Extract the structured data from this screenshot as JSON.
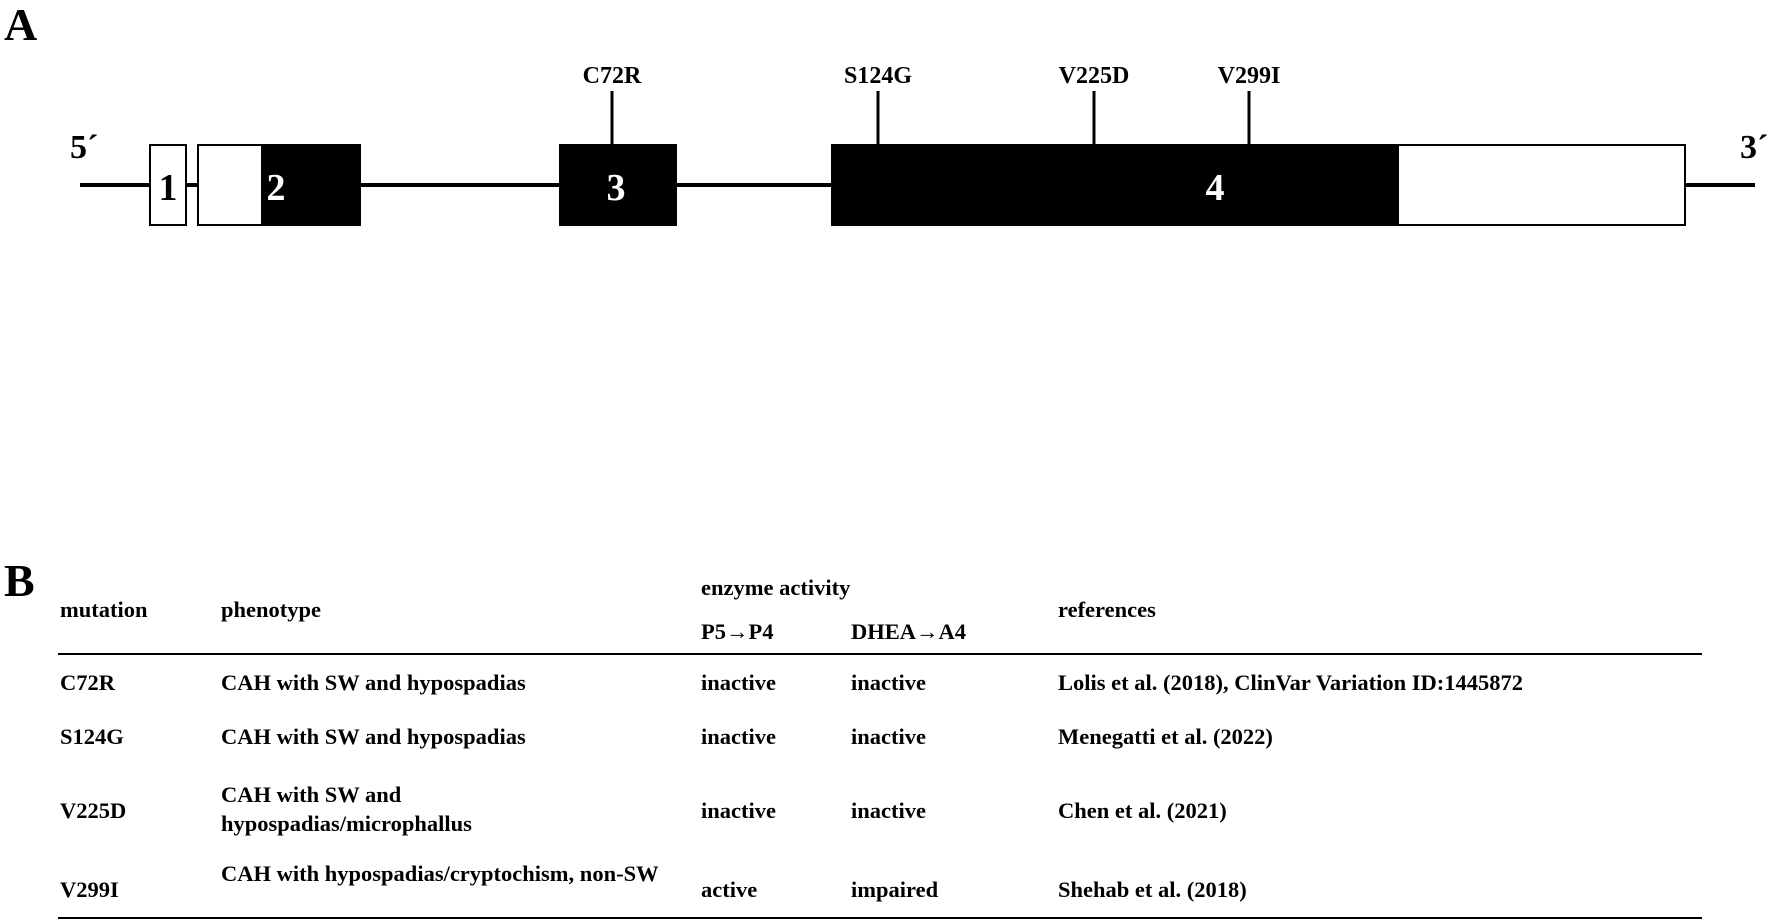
{
  "panels": {
    "a": "A",
    "b": "B"
  },
  "gene": {
    "five_prime": "5´",
    "three_prime": "3´",
    "exons": [
      {
        "label": "1"
      },
      {
        "label": "2"
      },
      {
        "label": "3"
      },
      {
        "label": "4"
      }
    ],
    "mutations": [
      "C72R",
      "S124G",
      "V225D",
      "V299I"
    ]
  },
  "table": {
    "headers": {
      "mutation": "mutation",
      "phenotype": "phenotype",
      "enzyme_activity": "enzyme activity",
      "p5_p4": "P5→P4",
      "dhea_a4": "DHEA→A4",
      "references": "references"
    },
    "rows": [
      {
        "mutation": "C72R",
        "phenotype": "CAH with SW and hypospadias",
        "p5_p4": "inactive",
        "dhea_a4": "inactive",
        "references": "Lolis et al. (2018), ClinVar Variation ID:1445872"
      },
      {
        "mutation": "S124G",
        "phenotype": "CAH with SW and hypospadias",
        "p5_p4": "inactive",
        "dhea_a4": "inactive",
        "references": "Menegatti et al. (2022)"
      },
      {
        "mutation": "V225D",
        "phenotype": "CAH with SW and hypospadias/microphallus",
        "p5_p4": "inactive",
        "dhea_a4": "inactive",
        "references": "Chen et al. (2021)"
      },
      {
        "mutation": "V299I",
        "phenotype": "CAH with hypospadias/cryptochism, non-SW",
        "p5_p4": "active",
        "dhea_a4": "impaired",
        "references": "Shehab et al. (2018)"
      }
    ]
  }
}
